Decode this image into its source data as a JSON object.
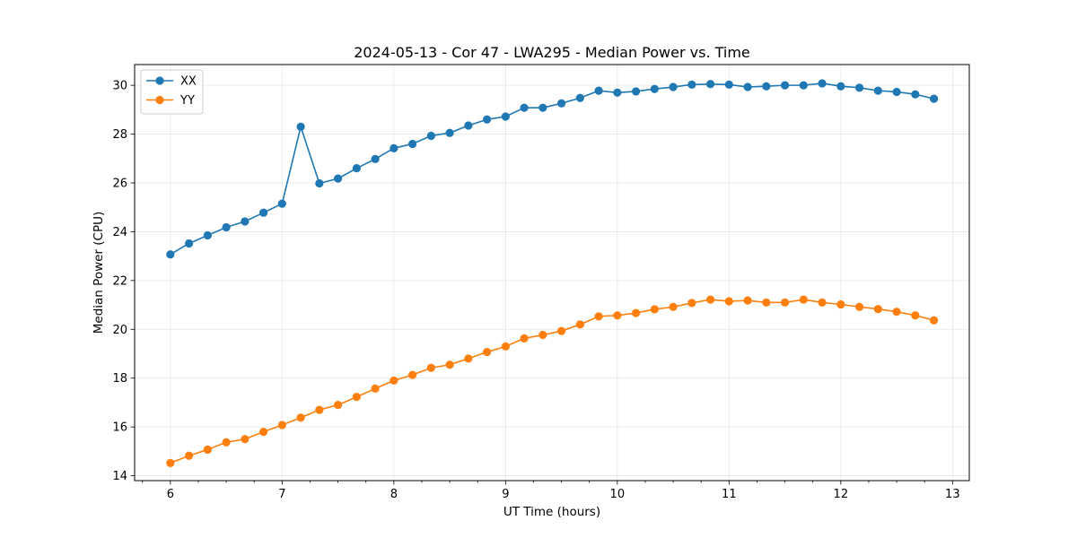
{
  "chart_data": {
    "type": "line",
    "title": "2024-05-13 - Cor 47 - LWA295 - Median Power vs. Time",
    "xlabel": "UT Time (hours)",
    "ylabel": "Median Power (CPU)",
    "xlim": [
      5.68,
      13.15
    ],
    "ylim": [
      13.8,
      30.85
    ],
    "xticks": [
      6,
      7,
      8,
      9,
      10,
      11,
      12,
      13
    ],
    "yticks": [
      14,
      16,
      18,
      20,
      22,
      24,
      26,
      28,
      30
    ],
    "grid": true,
    "legend_position": "upper-left",
    "x": [
      6.0,
      6.1667,
      6.3333,
      6.5,
      6.6667,
      6.8333,
      7.0,
      7.1667,
      7.3333,
      7.5,
      7.6667,
      7.8333,
      8.0,
      8.1667,
      8.3333,
      8.5,
      8.6667,
      8.8333,
      9.0,
      9.1667,
      9.3333,
      9.5,
      9.6667,
      9.8333,
      10.0,
      10.1667,
      10.3333,
      10.5,
      10.6667,
      10.8333,
      11.0,
      11.1667,
      11.3333,
      11.5,
      11.6667,
      11.8333,
      12.0,
      12.1667,
      12.3333,
      12.5,
      12.6667,
      12.8333
    ],
    "series": [
      {
        "name": "XX",
        "color": "#1f77b4",
        "values": [
          23.07,
          23.52,
          23.85,
          24.18,
          24.42,
          24.78,
          25.15,
          28.3,
          25.98,
          26.18,
          26.6,
          26.98,
          27.42,
          27.6,
          27.93,
          28.05,
          28.35,
          28.6,
          28.72,
          29.08,
          29.08,
          29.26,
          29.48,
          29.78,
          29.7,
          29.75,
          29.85,
          29.93,
          30.03,
          30.05,
          30.03,
          29.93,
          29.96,
          30.0,
          30.0,
          30.08,
          29.96,
          29.9,
          29.78,
          29.73,
          29.63,
          29.45
        ]
      },
      {
        "name": "YY",
        "color": "#ff7f0e",
        "values": [
          14.52,
          14.82,
          15.07,
          15.37,
          15.5,
          15.8,
          16.08,
          16.38,
          16.7,
          16.9,
          17.23,
          17.57,
          17.9,
          18.13,
          18.42,
          18.55,
          18.8,
          19.07,
          19.3,
          19.63,
          19.77,
          19.93,
          20.2,
          20.53,
          20.57,
          20.67,
          20.82,
          20.92,
          21.08,
          21.22,
          21.15,
          21.18,
          21.1,
          21.1,
          21.22,
          21.1,
          21.02,
          20.92,
          20.83,
          20.72,
          20.57,
          20.37
        ]
      }
    ]
  }
}
